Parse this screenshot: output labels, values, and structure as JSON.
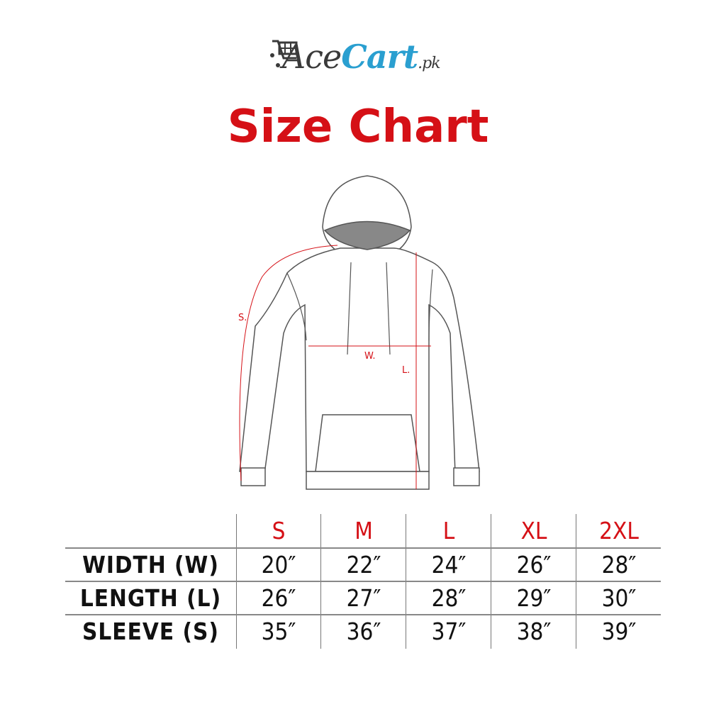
{
  "logo": {
    "ace": "Ace",
    "cart": "Cart",
    "suffix": ".pk",
    "colors": {
      "ace": "#3a3a3a",
      "cart": "#2a9fd0"
    }
  },
  "title": "Size Chart",
  "diagram": {
    "labels": {
      "sleeve": "S.",
      "width": "W.",
      "length": "L."
    },
    "measure_color": "#d51016"
  },
  "table": {
    "sizes": [
      "S",
      "M",
      "L",
      "XL",
      "2XL"
    ],
    "rows": [
      {
        "label": "WIDTH (W)",
        "values": [
          "20″",
          "22″",
          "24″",
          "26″",
          "28″"
        ]
      },
      {
        "label": "LENGTH (L)",
        "values": [
          "26″",
          "27″",
          "28″",
          "29″",
          "30″"
        ]
      },
      {
        "label": "SLEEVE (S)",
        "values": [
          "35″",
          "36″",
          "37″",
          "38″",
          "39″"
        ]
      }
    ]
  }
}
